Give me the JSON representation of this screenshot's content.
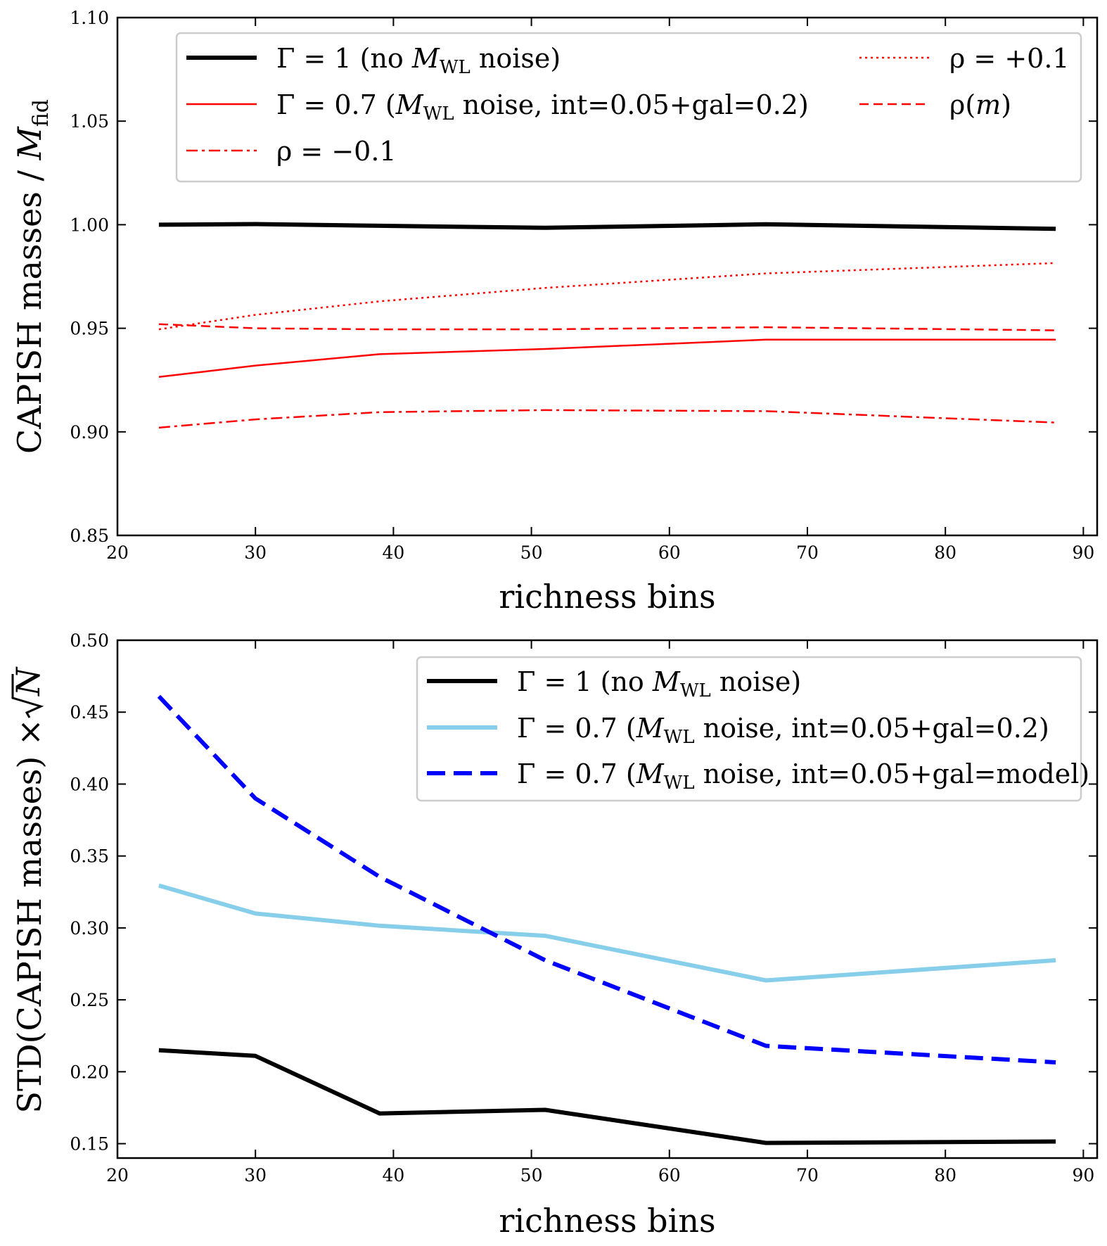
{
  "chart_data": [
    {
      "type": "line",
      "xlabel": "richness bins",
      "ylabel": "CAPISH masses / M_fid",
      "ylabel_parts": {
        "main": "CAPISH masses / ",
        "symbol": "M",
        "sub": "fid"
      },
      "xlim": [
        20,
        91
      ],
      "ylim": [
        0.85,
        1.1
      ],
      "xticks": [
        "20",
        "30",
        "40",
        "50",
        "60",
        "70",
        "80",
        "90"
      ],
      "yticks": [
        "0.85",
        "0.90",
        "0.95",
        "1.00",
        "1.05",
        "1.10"
      ],
      "grid": false,
      "legend_position": "top",
      "x": [
        23,
        30,
        39,
        51,
        67,
        88
      ],
      "series": [
        {
          "name": "Γ = 1 (no M_WL noise)",
          "label_parts": {
            "pre": "Γ = 1 (no ",
            "sym": "M",
            "sub": "WL",
            "post": " noise)"
          },
          "values": [
            1.0,
            1.0003,
            0.9995,
            0.9985,
            1.0002,
            0.998
          ],
          "color": "#000000",
          "style": "solid",
          "width": 6
        },
        {
          "name": "Γ = 0.7 (M_WL noise, int=0.05+gal=0.2)",
          "label_parts": {
            "pre": "Γ = 0.7 (",
            "sym": "M",
            "sub": "WL",
            "post": " noise, int=0.05+gal=0.2)"
          },
          "values": [
            0.9265,
            0.932,
            0.9375,
            0.94,
            0.9445,
            0.9445
          ],
          "color": "#ff0000",
          "style": "solid",
          "width": 2.5
        },
        {
          "name": "ρ = −0.1",
          "label_parts": {
            "pre": "ρ = −0.1",
            "sym": "",
            "sub": "",
            "post": ""
          },
          "values": [
            0.902,
            0.906,
            0.9095,
            0.9105,
            0.91,
            0.9045
          ],
          "color": "#ff0000",
          "style": "dashdot",
          "width": 2.5
        },
        {
          "name": "ρ = +0.1",
          "label_parts": {
            "pre": "ρ = +0.1",
            "sym": "",
            "sub": "",
            "post": ""
          },
          "values": [
            0.9495,
            0.9565,
            0.963,
            0.9695,
            0.9765,
            0.9815
          ],
          "color": "#ff0000",
          "style": "dotted",
          "width": 2.5
        },
        {
          "name": "ρ(m)",
          "label_parts": {
            "pre": "ρ(",
            "sym": "m",
            "sub": "",
            "post": ")"
          },
          "values": [
            0.952,
            0.95,
            0.9495,
            0.9495,
            0.9505,
            0.949
          ],
          "color": "#ff0000",
          "style": "dashed",
          "width": 2.5
        }
      ]
    },
    {
      "type": "line",
      "xlabel": "richness bins",
      "ylabel": "STD(CAPISH masses) × √N",
      "ylabel_parts": {
        "main": "STD(CAPISH masses) × ",
        "symbol": "N"
      },
      "xlim": [
        20,
        91
      ],
      "ylim": [
        0.14,
        0.5
      ],
      "xticks": [
        "20",
        "30",
        "40",
        "50",
        "60",
        "70",
        "80",
        "90"
      ],
      "yticks": [
        "0.15",
        "0.20",
        "0.25",
        "0.30",
        "0.35",
        "0.40",
        "0.45",
        "0.50"
      ],
      "grid": false,
      "legend_position": "top-right",
      "x": [
        23,
        30,
        39,
        51,
        67,
        88
      ],
      "series": [
        {
          "name": "Γ = 1 (no M_WL noise)",
          "label_parts": {
            "pre": "Γ = 1 (no ",
            "sym": "M",
            "sub": "WL",
            "post": " noise)"
          },
          "values": [
            0.215,
            0.211,
            0.171,
            0.1735,
            0.1505,
            0.1515
          ],
          "color": "#000000",
          "style": "solid",
          "width": 6
        },
        {
          "name": "Γ = 0.7 (M_WL noise, int=0.05+gal=0.2)",
          "label_parts": {
            "pre": "Γ = 0.7 (",
            "sym": "M",
            "sub": "WL",
            "post": " noise, int=0.05+gal=0.2)"
          },
          "values": [
            0.3295,
            0.31,
            0.3015,
            0.2945,
            0.2635,
            0.2775
          ],
          "color": "#87ceeb",
          "style": "solid",
          "width": 6
        },
        {
          "name": "Γ = 0.7 (M_WL noise, int=0.05+gal=model)",
          "label_parts": {
            "pre": "Γ = 0.7 (",
            "sym": "M",
            "sub": "WL",
            "post": " noise, int=0.05+gal=model)"
          },
          "values": [
            0.461,
            0.39,
            0.3355,
            0.2775,
            0.218,
            0.2065
          ],
          "color": "#0000ff",
          "style": "dashed",
          "width": 6
        }
      ]
    }
  ]
}
